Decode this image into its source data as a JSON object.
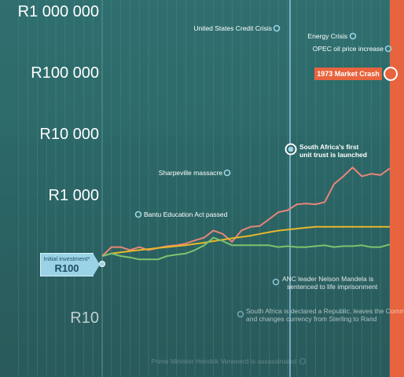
{
  "chart_data": {
    "type": "line",
    "title": "",
    "xlabel": "",
    "ylabel": "",
    "y_scale": "log",
    "ylim": [
      1,
      10000000
    ],
    "y_ticks": [
      {
        "value": 1000000,
        "label": "R1 000 000"
      },
      {
        "value": 100000,
        "label": "R100 000"
      },
      {
        "value": 10000,
        "label": "R10 000"
      },
      {
        "value": 1000,
        "label": "R1 000"
      },
      {
        "value": 10,
        "label": "R10"
      }
    ],
    "x_range": [
      1940,
      1981
    ],
    "series": [
      {
        "color": "#e8857a",
        "x": [
          1949,
          1950,
          1951,
          1952,
          1953,
          1954,
          1955,
          1956,
          1957,
          1958,
          1959,
          1960,
          1961,
          1962,
          1963,
          1964,
          1965,
          1966,
          1967,
          1968,
          1969,
          1970,
          1971,
          1972,
          1973,
          1974,
          1975,
          1976,
          1977,
          1978,
          1979,
          1980
        ],
        "values": [
          100,
          140,
          140,
          125,
          140,
          125,
          135,
          145,
          150,
          160,
          180,
          200,
          260,
          230,
          170,
          260,
          300,
          310,
          400,
          520,
          560,
          700,
          720,
          700,
          760,
          1500,
          2000,
          2800,
          2000,
          2200,
          2100,
          2700
        ]
      },
      {
        "color": "#e8b72a",
        "x": [
          1949,
          1950,
          1951,
          1952,
          1953,
          1954,
          1955,
          1956,
          1957,
          1958,
          1959,
          1960,
          1961,
          1962,
          1963,
          1964,
          1965,
          1966,
          1967,
          1968,
          1969,
          1970,
          1971,
          1972,
          1973,
          1974,
          1975,
          1976,
          1977,
          1978,
          1979,
          1980
        ],
        "values": [
          100,
          110,
          115,
          120,
          125,
          130,
          135,
          140,
          145,
          150,
          158,
          165,
          175,
          185,
          195,
          205,
          215,
          230,
          245,
          260,
          270,
          280,
          290,
          300,
          300,
          300,
          300,
          300,
          300,
          300,
          300,
          300
        ]
      },
      {
        "color": "#7cc36e",
        "x": [
          1949,
          1950,
          1951,
          1952,
          1953,
          1954,
          1955,
          1956,
          1957,
          1958,
          1959,
          1960,
          1961,
          1962,
          1963,
          1964,
          1965,
          1966,
          1967,
          1968,
          1969,
          1970,
          1971,
          1972,
          1973,
          1974,
          1975,
          1976,
          1977,
          1978,
          1979,
          1980
        ],
        "values": [
          100,
          110,
          100,
          95,
          88,
          88,
          88,
          100,
          105,
          110,
          125,
          150,
          200,
          175,
          150,
          150,
          150,
          150,
          150,
          140,
          145,
          140,
          140,
          145,
          150,
          140,
          145,
          145,
          150,
          140,
          140,
          155
        ]
      }
    ],
    "annotations": [
      {
        "text": "United States Credit Crisis",
        "x": 1966,
        "y": 500000
      },
      {
        "text": "Energy Crisis",
        "x": 1972,
        "y": 300000
      },
      {
        "text": "OPEC oil price increase",
        "x": 1974,
        "y": 220000
      },
      {
        "text": "1973 Market Crash",
        "x": 1973,
        "y": 100000
      },
      {
        "text": "South Africa's first unit trust is launched",
        "x": 1966,
        "y": 5000
      },
      {
        "text": "Sharpeville massacre",
        "x": 1960,
        "y": 2500
      },
      {
        "text": "Bantu Education Act passed",
        "x": 1953,
        "y": 600
      },
      {
        "text": "ANC leader Nelson Mandela is sentenced to life imprisonment",
        "x": 1964,
        "y": 40
      },
      {
        "text": "South Africa is declared a Republic, leaves the Commonwealth and changes currency from Sterling to Rand",
        "x": 1961,
        "y": 12
      },
      {
        "text": "Prime Minister Hendrik Verwoerd is assassinated",
        "x": 1966,
        "y": 3
      }
    ]
  },
  "initial_investment": {
    "label": "Initial investment*",
    "value": "R100"
  },
  "market_crash": {
    "label": "1973 Market Crash"
  },
  "colors": {
    "background": "#2d6a6a",
    "crash_band": "#e8643e",
    "unit_trust_line": "#8fc4e2",
    "gridline": "#5a9090"
  }
}
